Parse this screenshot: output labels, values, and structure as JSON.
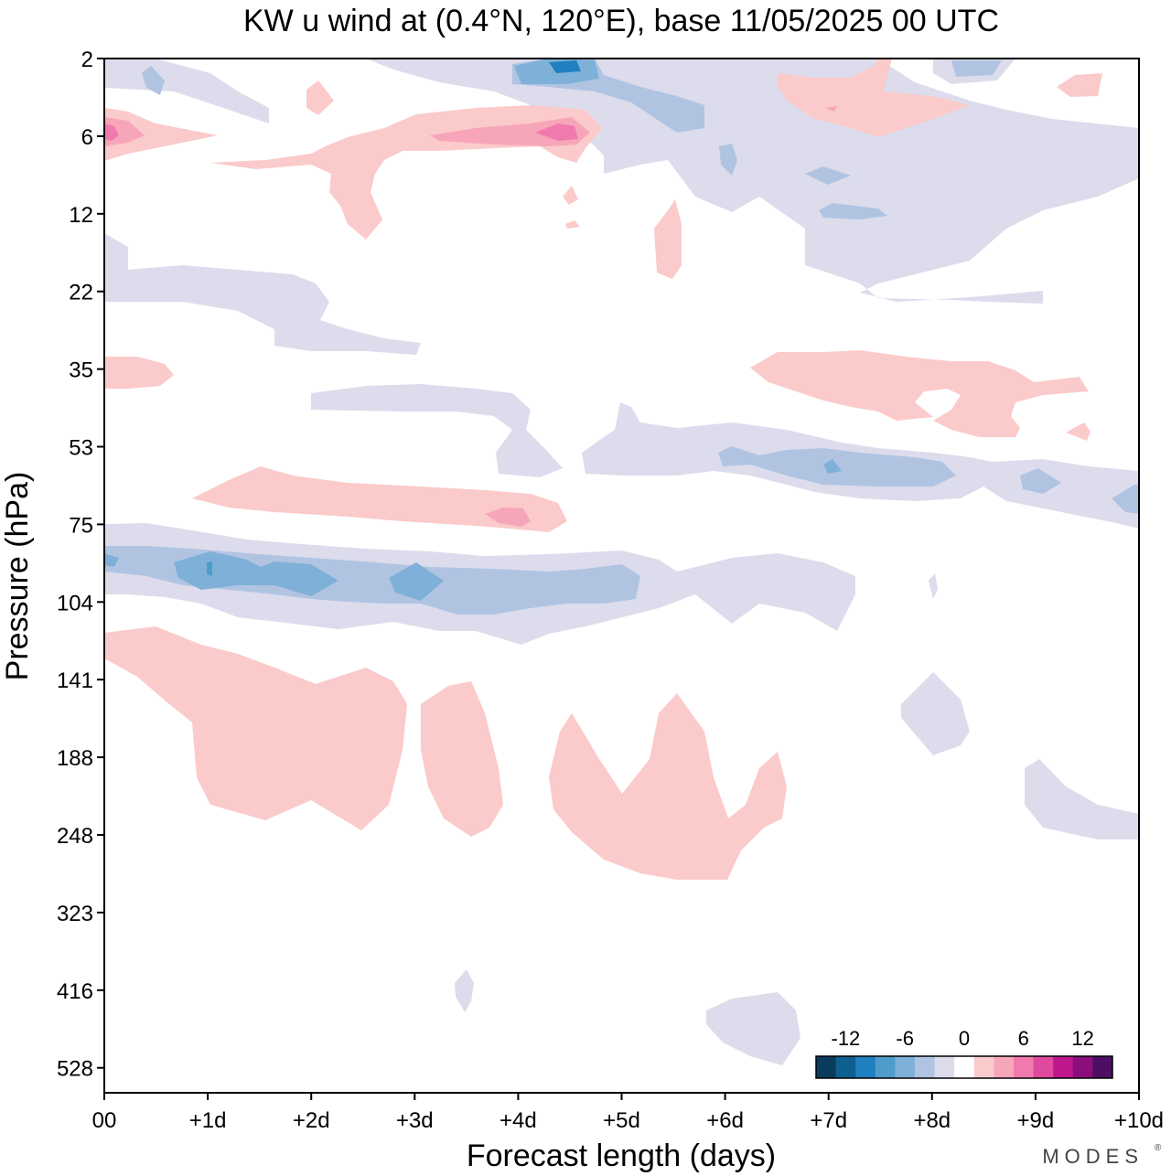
{
  "chart_data": {
    "type": "heatmap",
    "title": "KW u wind at (0.4°N, 120°E),  base 11/05/2025  00 UTC",
    "xlabel": "Forecast length (days)",
    "ylabel": "Pressure (hPa)",
    "x_ticks": [
      "00",
      "+1d",
      "+2d",
      "+3d",
      "+4d",
      "+5d",
      "+6d",
      "+7d",
      "+8d",
      "+9d",
      "+10d"
    ],
    "xlim": [
      0,
      10
    ],
    "y_ticks": [
      2,
      6,
      12,
      22,
      35,
      53,
      75,
      104,
      141,
      188,
      248,
      323,
      416,
      528
    ],
    "y_scale": "log-pressure, top 2 hPa, bottom ~600 hPa",
    "colorbar": {
      "ticks": [
        "-12",
        "-6",
        "0",
        "6",
        "12"
      ],
      "colors": [
        "#0b3b5c",
        "#0f5f8f",
        "#1f80c0",
        "#4f9ccc",
        "#7fb0d8",
        "#b0c4e2",
        "#dcdcec",
        "#ffffff",
        "#fbcaca",
        "#f7a6b9",
        "#f07aad",
        "#e04a9e",
        "#c0178d",
        "#8a0e7b",
        "#4d0f63"
      ],
      "placement": "bottom-right"
    },
    "regions": [
      {
        "sign": "negative",
        "max_abs": 10,
        "x": [
          0,
          6
        ],
        "p_hPa": [
          80,
          120
        ],
        "note": "strong easterly band near 95 hPa"
      },
      {
        "sign": "negative",
        "max_abs": 6,
        "x": [
          6,
          7.3
        ],
        "p_hPa": [
          85,
          130
        ]
      },
      {
        "sign": "negative",
        "max_abs": 8,
        "x": [
          4.5,
          10
        ],
        "p_hPa": [
          45,
          78
        ]
      },
      {
        "sign": "negative",
        "max_abs": 2,
        "x": [
          2,
          4.5
        ],
        "p_hPa": [
          38,
          60
        ]
      },
      {
        "sign": "positive",
        "max_abs": 6,
        "x": [
          0.9,
          4.5
        ],
        "p_hPa": [
          58,
          82
        ]
      },
      {
        "sign": "positive",
        "max_abs": 2,
        "x": [
          0,
          0.7
        ],
        "p_hPa": [
          32,
          40
        ]
      },
      {
        "sign": "positive",
        "max_abs": 3,
        "x": [
          6.3,
          9.6
        ],
        "p_hPa": [
          30,
          50
        ]
      },
      {
        "sign": "positive",
        "max_abs": 3,
        "x": [
          0,
          6.5
        ],
        "p_hPa": [
          120,
          330
        ],
        "note": "lower-troposphere westerlies"
      },
      {
        "sign": "negative",
        "max_abs": 2,
        "x": [
          7.7,
          8.4
        ],
        "p_hPa": [
          140,
          200
        ]
      },
      {
        "sign": "negative",
        "max_abs": 2,
        "x": [
          9,
          10
        ],
        "p_hPa": [
          185,
          260
        ]
      },
      {
        "sign": "negative",
        "max_abs": 2,
        "x": [
          5.8,
          6.8
        ],
        "p_hPa": [
          430,
          560
        ]
      },
      {
        "sign": "negative",
        "max_abs": 2,
        "x": [
          3.4,
          3.6
        ],
        "p_hPa": [
          400,
          470
        ]
      },
      {
        "sign": "positive",
        "max_abs": 10,
        "x": [
          0,
          4.7
        ],
        "p_hPa": [
          4.5,
          9
        ],
        "note": "peaks near 6 hPa at 00 and +4.5d"
      },
      {
        "sign": "negative",
        "max_abs": 10,
        "x": [
          3,
          6.5
        ],
        "p_hPa": [
          2,
          6
        ],
        "note": "peak near +4.5d at 2.5 hPa"
      },
      {
        "sign": "negative",
        "max_abs": 6,
        "x": [
          5,
          10
        ],
        "p_hPa": [
          7,
          25
        ]
      },
      {
        "sign": "positive",
        "max_abs": 2,
        "x": [
          6.3,
          10
        ],
        "p_hPa": [
          2,
          6
        ]
      },
      {
        "sign": "negative",
        "max_abs": 6,
        "x": [
          8,
          8.9
        ],
        "p_hPa": [
          2,
          3
        ]
      },
      {
        "sign": "positive",
        "max_abs": 2,
        "x": [
          5.3,
          5.6
        ],
        "p_hPa": [
          12,
          20
        ]
      },
      {
        "sign": "negative",
        "max_abs": 2,
        "x": [
          0,
          3.1
        ],
        "p_hPa": [
          14,
          30
        ]
      }
    ]
  },
  "brand": "MODES"
}
